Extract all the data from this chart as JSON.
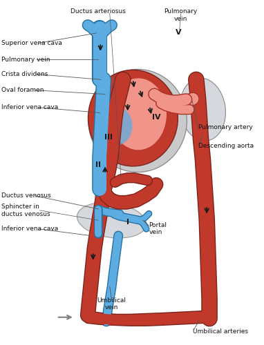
{
  "bg": "#ffffff",
  "colors": {
    "red": "#c0392b",
    "blue": "#5dade2",
    "light_blue": "#aed6f1",
    "pink": "#f1948a",
    "gray": "#bdc3c7",
    "dark": "#1a1a1a",
    "red_dark": "#7b241c",
    "blue_dark": "#2471a3",
    "lung_gray": "#d5d8dc",
    "outline_dark": "#555555"
  },
  "labels": {
    "ductus_arteriosus": "Ductus arteriosus",
    "pulmonary_vein_top": "Pulmonary\nvein",
    "V_label": "V",
    "superior_vena_cava": "Superior vena cava",
    "pulmonary_vein": "Pulmonary vein",
    "crista_dividens": "Crista dividens",
    "oval_foramen": "Oval foramen",
    "II": "II",
    "III": "III",
    "IV": "IV",
    "I": "I",
    "inferior_vena_cava_top": "Inferior vena cava",
    "pulmonary_artery": "Pulmonary artery",
    "descending_aorta": "Descending aorta",
    "ductus_venosus": "Ductus venosus",
    "sphincter": "Sphincter in\nductus venosus",
    "inferior_vena_cava_bot": "Inferior vena cava",
    "portal_vein": "Portal\nvein",
    "umbilical_vein": "Umbilical\nvein",
    "umbilical_arteries": "Umbilical arteries"
  }
}
